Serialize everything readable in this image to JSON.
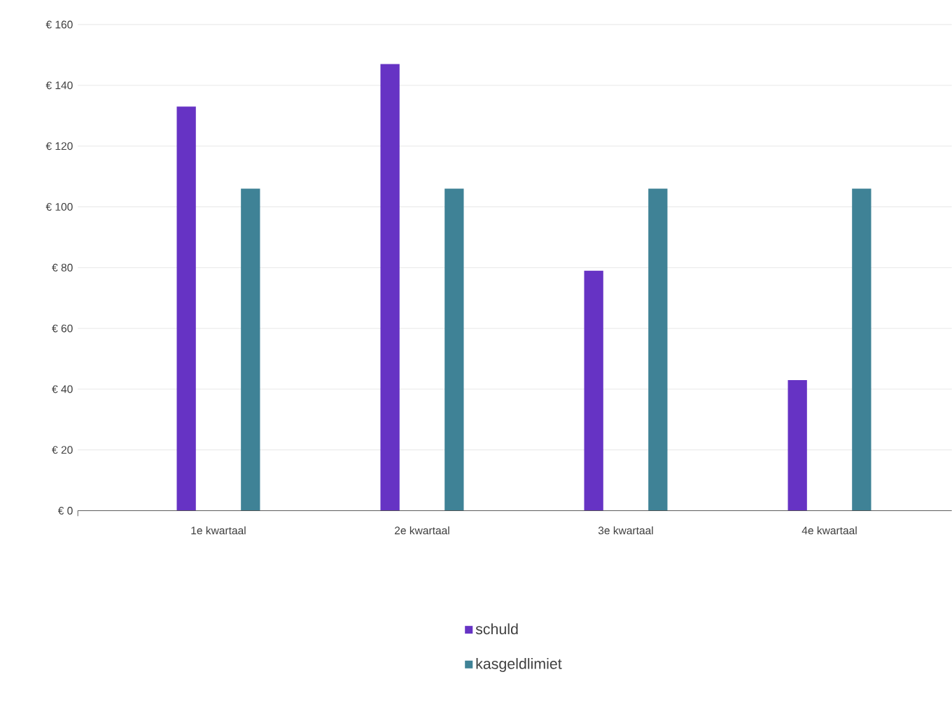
{
  "chart_data": {
    "type": "bar",
    "categories": [
      "1e kwartaal",
      "2e kwartaal",
      "3e kwartaal",
      "4e kwartaal"
    ],
    "series": [
      {
        "name": "schuld",
        "color": "#6633c4",
        "values": [
          133,
          147,
          79,
          43
        ]
      },
      {
        "name": "kasgeldlimiet",
        "color": "#3f8296",
        "values": [
          106,
          106,
          106,
          106
        ]
      }
    ],
    "ylim": [
      0,
      160
    ],
    "yticks": [
      {
        "value": 0,
        "label": "€ 0"
      },
      {
        "value": 20,
        "label": "€ 20"
      },
      {
        "value": 40,
        "label": "€ 40"
      },
      {
        "value": 60,
        "label": "€ 60"
      },
      {
        "value": 80,
        "label": "€ 80"
      },
      {
        "value": 100,
        "label": "€ 100"
      },
      {
        "value": 120,
        "label": "€ 120"
      },
      {
        "value": 140,
        "label": "€ 140"
      },
      {
        "value": 160,
        "label": "€ 160"
      }
    ],
    "grid": "y",
    "legend": "bottom"
  }
}
